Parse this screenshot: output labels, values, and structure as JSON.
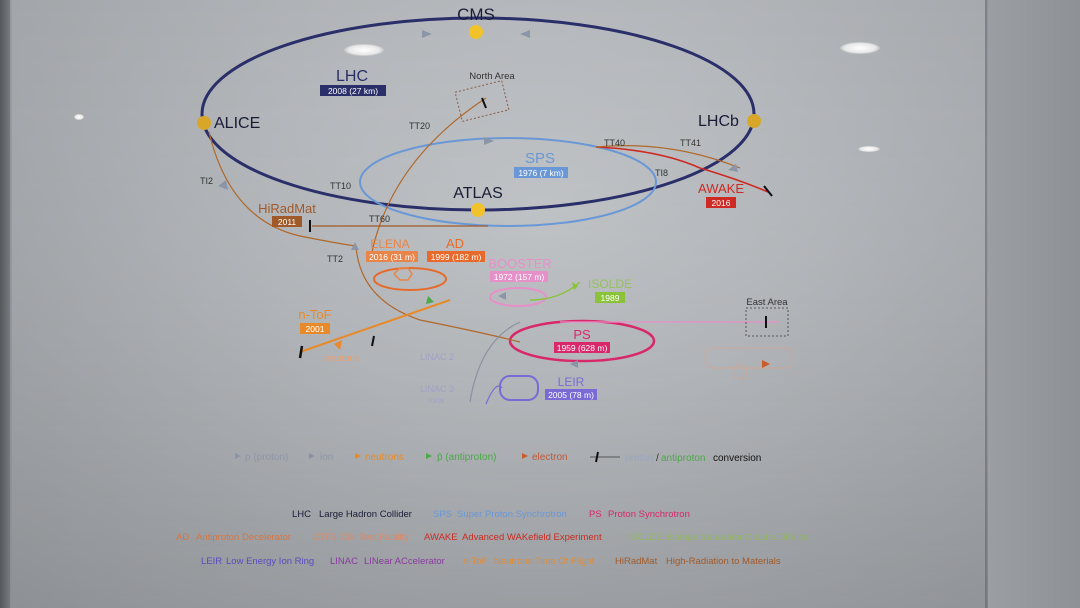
{
  "colors": {
    "lhc": "#2a2f6a",
    "sps": "#6a98d6",
    "ps": "#d8286a",
    "booster": "#e690c8",
    "leir": "#7a6ad6",
    "awake": "#cc2a22",
    "tt": "#b0682a",
    "hiradmat": "#a05a2a",
    "ntof": "#e88a2a",
    "isolde": "#8ac23a",
    "elena": "#e8854a",
    "ad": "#e86a2a",
    "experiment": "#f2c22a",
    "proton_arrow": "#8b95a8",
    "ion_arrow": "#8b8fa0",
    "neutron_arrow": "#e88a2a",
    "antiproton_arrow": "#4ca84a",
    "electron_arrow": "#cc5a2a"
  },
  "experiments": {
    "cms": "CMS",
    "alice": "ALICE",
    "lhcb": "LHCb",
    "atlas": "ATLAS"
  },
  "accelerators": {
    "lhc": {
      "name": "LHC",
      "year": "2008 (27 km)"
    },
    "sps": {
      "name": "SPS",
      "year": "1976 (7 km)"
    },
    "ps": {
      "name": "PS",
      "year": "1959 (628 m)"
    },
    "booster": {
      "name": "BOOSTER",
      "year": "1972 (157 m)"
    },
    "leir": {
      "name": "LEIR",
      "year": "2005 (78 m)"
    },
    "awake": {
      "name": "AWAKE",
      "year": "2016"
    },
    "hiradmat": {
      "name": "HiRadMat",
      "year": "2011"
    },
    "ntof": {
      "name": "n-ToF",
      "year": "2001"
    },
    "isolde": {
      "name": "ISOLDE",
      "year": "1989"
    },
    "elena": {
      "name": "ELENA",
      "year": "2016 (31 m)"
    },
    "ad": {
      "name": "AD",
      "year": "1999 (182 m)"
    }
  },
  "areas": {
    "north": "North Area",
    "east": "East Area"
  },
  "transfer_lines": {
    "tt20": "TT20",
    "tt40": "TT40",
    "tt41": "TT41",
    "tt10": "TT10",
    "tt60": "TT60",
    "tt2": "TT2",
    "ti2": "TI2",
    "ti8": "TI8"
  },
  "linacs": {
    "linac2": "LINAC 2",
    "linac3": "LINAC 3",
    "ions": "Ions",
    "neutrons": "neutrons"
  },
  "legend": {
    "proton": "p (proton)",
    "ion": "ion",
    "neutrons": "neutrons",
    "antiproton": "p̄ (antiproton)",
    "electron": "electron",
    "conversion_a": "proton",
    "conversion_sep": "/",
    "conversion_b": "antiproton",
    "conversion_c": "conversion"
  },
  "glossary": {
    "row1": [
      {
        "abbr": "LHC",
        "text": "Large Hadron Collider"
      },
      {
        "abbr": "SPS",
        "text": "Super Proton Synchrotron"
      },
      {
        "abbr": "PS",
        "text": "Proton Synchrotron"
      }
    ],
    "row2": [
      {
        "abbr": "AD",
        "text": "Antiproton Decelerator"
      },
      {
        "abbr": "CTF3",
        "text": "Clic Test Facility"
      },
      {
        "abbr": "AWAKE",
        "text": "Advanced WAKefield Experiment"
      },
      {
        "abbr": "ISOLDE",
        "text": "Isotope Separator OnLine DEvice"
      }
    ],
    "row3": [
      {
        "abbr": "LEIR",
        "text": "Low Energy Ion Ring"
      },
      {
        "abbr": "LINAC",
        "text": "LINear ACcelerator"
      },
      {
        "abbr": "n-ToF",
        "text": "Neutrons Time Of Flight"
      },
      {
        "abbr": "HiRadMat",
        "text": "High-Radiation to Materials"
      }
    ]
  }
}
